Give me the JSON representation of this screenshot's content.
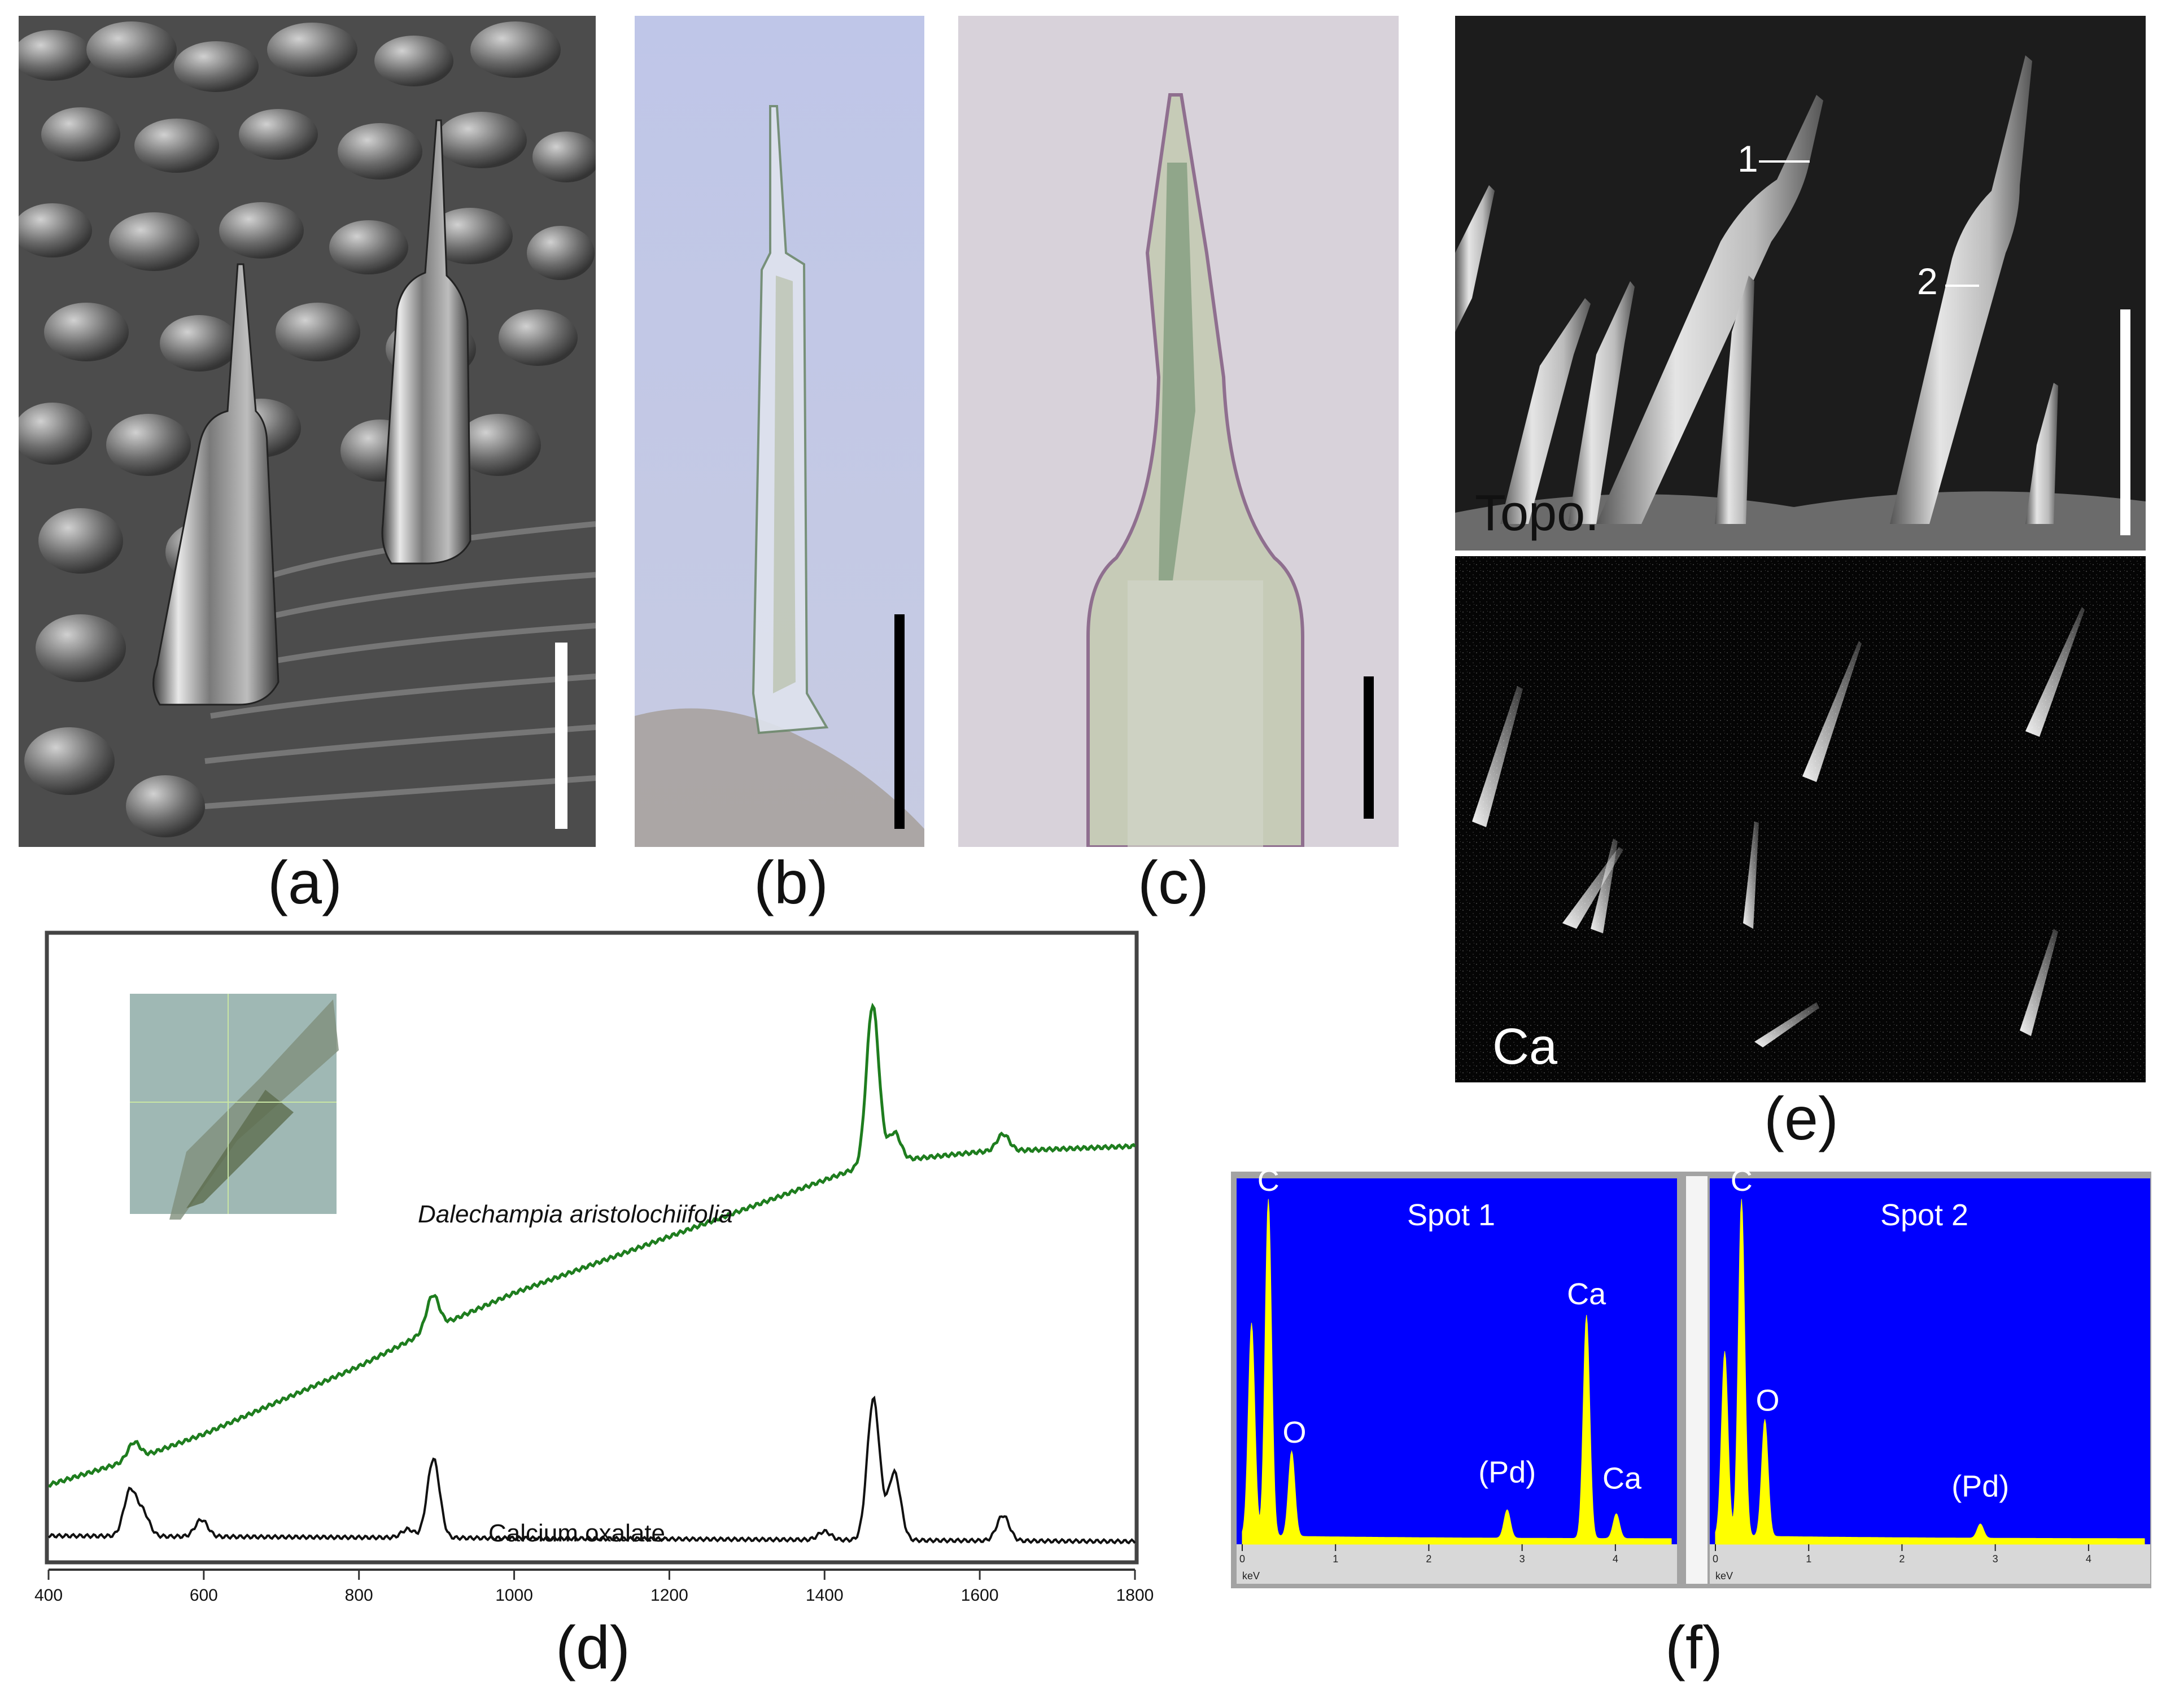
{
  "panel_letters": {
    "a": "(a)",
    "b": "(b)",
    "c": "(c)",
    "d": "(d)",
    "e": "(e)",
    "f": "(f)"
  },
  "panel_e": {
    "topo_label": "Topo.",
    "ca_label": "Ca",
    "marker_1": "1",
    "marker_2": "2"
  },
  "panel_d": {
    "upper_trace_label": "Dalechampia aristolochiifolia",
    "lower_trace_label": "Calcium oxalate",
    "x_ticks": [
      "400",
      "600",
      "800",
      "1000",
      "1200",
      "1400",
      "1600",
      "1800"
    ]
  },
  "chart_data": [
    {
      "type": "line",
      "title": "",
      "xlabel": "",
      "ylabel": "",
      "xlim": [
        400,
        1800
      ],
      "series": [
        {
          "name": "Dalechampia aristolochiifolia",
          "color": "#1e7d1e",
          "baseline": [
            [
              400,
              0.12
            ],
            [
              520,
              0.17
            ],
            [
              600,
              0.21
            ],
            [
              700,
              0.27
            ],
            [
              800,
              0.33
            ],
            [
              900,
              0.4
            ],
            [
              1000,
              0.46
            ],
            [
              1100,
              0.51
            ],
            [
              1200,
              0.56
            ],
            [
              1300,
              0.61
            ],
            [
              1400,
              0.66
            ],
            [
              1460,
              0.69
            ],
            [
              1600,
              0.71
            ],
            [
              1800,
              0.72
            ]
          ],
          "peaks": [
            [
              510,
              0.03
            ],
            [
              895,
              0.06
            ],
            [
              1462,
              0.28
            ],
            [
              1490,
              0.05
            ],
            [
              1630,
              0.03
            ]
          ]
        },
        {
          "name": "Calcium oxalate",
          "color": "#111111",
          "baseline": [
            [
              400,
              0.03
            ],
            [
              1800,
              0.02
            ]
          ],
          "peaks": [
            [
              505,
              0.08
            ],
            [
              522,
              0.04
            ],
            [
              597,
              0.03
            ],
            [
              863,
              0.015
            ],
            [
              896,
              0.14
            ],
            [
              1400,
              0.015
            ],
            [
              1463,
              0.25
            ],
            [
              1490,
              0.12
            ],
            [
              1630,
              0.045
            ]
          ]
        }
      ]
    },
    {
      "type": "line",
      "title": "Spot 1",
      "x_unit": "keV",
      "xlim": [
        0,
        4.6
      ],
      "x_ticks": [
        "0",
        "1",
        "2",
        "3",
        "4"
      ],
      "peak_labels": [
        "C",
        "O",
        "(Pd)",
        "Ca",
        "Ca"
      ],
      "peaks": [
        [
          0.1,
          0.6
        ],
        [
          0.28,
          0.95
        ],
        [
          0.53,
          0.24
        ],
        [
          2.84,
          0.08
        ],
        [
          3.69,
          0.63
        ],
        [
          4.01,
          0.07
        ]
      ]
    },
    {
      "type": "line",
      "title": "Spot 2",
      "x_unit": "keV",
      "xlim": [
        0,
        4.6
      ],
      "x_ticks": [
        "0",
        "1",
        "2",
        "3",
        "4"
      ],
      "peak_labels": [
        "C",
        "O",
        "(Pd)"
      ],
      "peaks": [
        [
          0.1,
          0.52
        ],
        [
          0.28,
          0.95
        ],
        [
          0.53,
          0.33
        ],
        [
          2.84,
          0.04
        ]
      ]
    }
  ],
  "colors": {
    "eds_background": "#0000ff",
    "eds_spectrum": "#ffff00",
    "raman_upper": "#1e7d1e",
    "raman_lower": "#111111"
  }
}
